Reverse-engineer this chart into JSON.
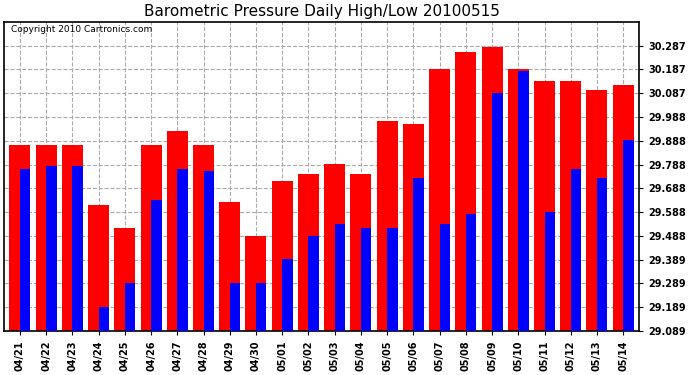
{
  "title": "Barometric Pressure Daily High/Low 20100515",
  "copyright": "Copyright 2010 Cartronics.com",
  "categories": [
    "04/21",
    "04/22",
    "04/23",
    "04/24",
    "04/25",
    "04/26",
    "04/27",
    "04/28",
    "04/29",
    "04/30",
    "05/01",
    "05/02",
    "05/03",
    "05/04",
    "05/05",
    "05/06",
    "05/07",
    "05/08",
    "05/09",
    "05/10",
    "05/11",
    "05/12",
    "05/13",
    "05/14"
  ],
  "highs": [
    29.87,
    29.87,
    29.87,
    29.62,
    29.52,
    29.87,
    29.93,
    29.87,
    29.63,
    29.49,
    29.72,
    29.75,
    29.79,
    29.75,
    29.97,
    29.96,
    30.19,
    30.26,
    30.28,
    30.19,
    30.14,
    30.14,
    30.1,
    30.12
  ],
  "lows": [
    29.77,
    29.78,
    29.78,
    29.19,
    29.29,
    29.64,
    29.77,
    29.76,
    29.29,
    29.29,
    29.39,
    29.49,
    29.54,
    29.52,
    29.52,
    29.73,
    29.54,
    29.58,
    30.09,
    30.18,
    29.59,
    29.77,
    29.73,
    29.89
  ],
  "high_color": "#FF0000",
  "low_color": "#0000FF",
  "background_color": "#FFFFFF",
  "grid_color": "#AAAAAA",
  "ymin": 29.089,
  "ymax": 30.387,
  "yticks": [
    29.089,
    29.189,
    29.289,
    29.389,
    29.488,
    29.588,
    29.688,
    29.788,
    29.888,
    29.988,
    30.087,
    30.187,
    30.287
  ],
  "bar_width": 0.4,
  "title_fontsize": 11,
  "tick_fontsize": 7,
  "copyright_fontsize": 6.5
}
